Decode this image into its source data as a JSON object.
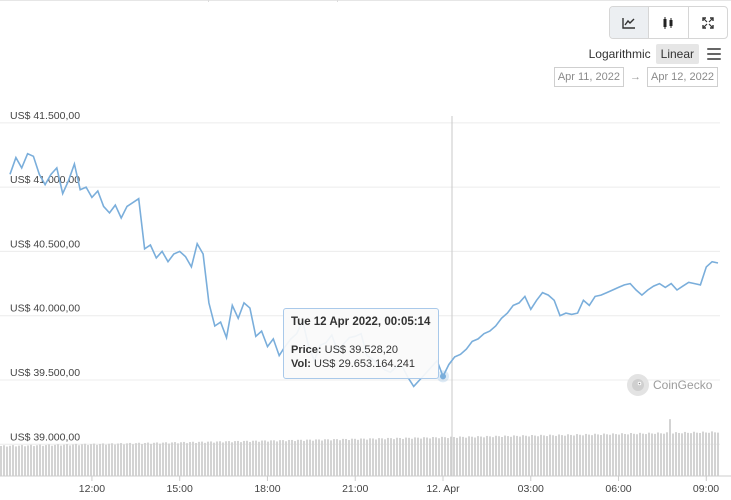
{
  "toolbar": {
    "buttons": [
      {
        "name": "line-chart",
        "active": true
      },
      {
        "name": "candlestick-chart",
        "active": false
      },
      {
        "name": "fullscreen",
        "active": false
      }
    ],
    "scale_options": [
      "Logarithmic",
      "Linear"
    ],
    "scale_active": "Linear"
  },
  "date_range": {
    "from": "Apr 11, 2022",
    "arrow": "→",
    "to": "Apr 12, 2022"
  },
  "tooltip": {
    "date": "Tue 12 Apr 2022, 00:05:14",
    "price_label": "Price:",
    "price_value": "US$ 39.528,20",
    "vol_label": "Vol:",
    "vol_value": "US$ 29.653.164.241"
  },
  "watermark": "CoinGecko",
  "chart_data": {
    "type": "line",
    "y_tick_labels": [
      "US$ 41.500,00",
      "US$ 41.000,00",
      "US$ 40.500,00",
      "US$ 40.000,00",
      "US$ 39.500,00",
      "US$ 39.000,00"
    ],
    "y_ticks": [
      41500,
      41000,
      40500,
      40000,
      39500,
      39000
    ],
    "x_tick_labels": [
      "12:00",
      "15:00",
      "18:00",
      "21:00",
      "12. Apr",
      "03:00",
      "06:00",
      "09:00"
    ],
    "x_ticks_hours": [
      12,
      15,
      18,
      21,
      24,
      27,
      30,
      33
    ],
    "x_range_hours": [
      9.2,
      33.4
    ],
    "ylim": [
      38800,
      41600
    ],
    "series": [
      {
        "hours": [
          9.2,
          9.4,
          9.6,
          9.8,
          10.0,
          10.2,
          10.4,
          10.6,
          10.8,
          11.0,
          11.2,
          11.4,
          11.6,
          11.8,
          12.0,
          12.2,
          12.4,
          12.6,
          12.8,
          13.0,
          13.2,
          13.4,
          13.6,
          13.8,
          14.0,
          14.2,
          14.4,
          14.6,
          14.8,
          15.0,
          15.2,
          15.4,
          15.6,
          15.8,
          16.0,
          16.2,
          16.4,
          16.6,
          16.8,
          17.0,
          17.2,
          17.4,
          17.6,
          17.8,
          18.0,
          18.2,
          18.4,
          18.6,
          18.8,
          19.0,
          19.2,
          19.4,
          19.6,
          19.8,
          20.0,
          20.2,
          20.4,
          20.6,
          20.8,
          21.0,
          21.2,
          21.4,
          21.6,
          21.8,
          22.0,
          22.2,
          22.4,
          22.6,
          22.8,
          23.0,
          23.2,
          23.4,
          23.6,
          23.8,
          24.0,
          24.2,
          24.4,
          24.6,
          24.8,
          25.0,
          25.2,
          25.4,
          25.6,
          25.8,
          26.0,
          26.2,
          26.4,
          26.6,
          26.8,
          27.0,
          27.2,
          27.4,
          27.6,
          27.8,
          28.0,
          28.2,
          28.4,
          28.6,
          28.8,
          29.0,
          29.2,
          29.4,
          29.6,
          29.8,
          30.0,
          30.2,
          30.4,
          30.6,
          30.8,
          31.0,
          31.2,
          31.4,
          31.6,
          31.8,
          32.0,
          32.2,
          32.4,
          32.6,
          32.8,
          33.0,
          33.2,
          33.4
        ],
        "values": [
          41100,
          41230,
          41150,
          41260,
          41240,
          41100,
          41020,
          41100,
          41150,
          40950,
          41050,
          41180,
          40980,
          41000,
          40920,
          40970,
          40850,
          40800,
          40860,
          40760,
          40850,
          40880,
          40910,
          40520,
          40550,
          40450,
          40500,
          40420,
          40480,
          40500,
          40460,
          40380,
          40560,
          40480,
          40100,
          39920,
          39950,
          39830,
          40080,
          39980,
          40100,
          40060,
          39840,
          39880,
          39760,
          39820,
          39690,
          39760,
          39820,
          39860,
          39960,
          39770,
          39650,
          39770,
          39790,
          39850,
          39720,
          39780,
          39830,
          39840,
          39860,
          39690,
          39660,
          39620,
          39580,
          39560,
          39600,
          39610,
          39520,
          39450,
          39500,
          39550,
          39600,
          39650,
          39528,
          39620,
          39680,
          39700,
          39740,
          39800,
          39820,
          39860,
          39880,
          39920,
          39980,
          40020,
          40080,
          40100,
          40150,
          40050,
          40120,
          40180,
          40160,
          40120,
          40000,
          40020,
          40010,
          40020,
          40120,
          40080,
          40150,
          40160,
          40180,
          40200,
          40220,
          40240,
          40250,
          40200,
          40160,
          40200,
          40230,
          40250,
          40220,
          40250,
          40200,
          40230,
          40260,
          40250,
          40240,
          40380,
          40420,
          40410
        ]
      }
    ],
    "volume_bars": true
  }
}
